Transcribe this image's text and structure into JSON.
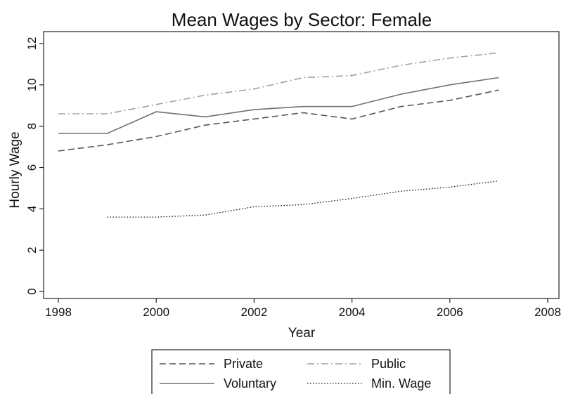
{
  "chart_data": {
    "type": "line",
    "title": "Mean Wages by Sector: Female",
    "xlabel": "Year",
    "ylabel": "Hourly Wage",
    "xlim": [
      1998,
      2008
    ],
    "ylim": [
      0,
      12
    ],
    "xticks": [
      1998,
      2000,
      2002,
      2004,
      2006,
      2008
    ],
    "yticks": [
      0,
      2,
      4,
      6,
      8,
      10,
      12
    ],
    "grid": false,
    "legend_position": "bottom",
    "series": [
      {
        "name": "Private",
        "style": "dashed",
        "color": "#555555",
        "x": [
          1998,
          1999,
          2000,
          2001,
          2002,
          2003,
          2004,
          2005,
          2006,
          2007
        ],
        "y": [
          6.8,
          7.1,
          7.5,
          8.05,
          8.35,
          8.65,
          8.35,
          8.95,
          9.25,
          9.75
        ]
      },
      {
        "name": "Public",
        "style": "dashdot",
        "color": "#a0a0a0",
        "x": [
          1998,
          1999,
          2000,
          2001,
          2002,
          2003,
          2004,
          2005,
          2006,
          2007
        ],
        "y": [
          8.6,
          8.6,
          9.05,
          9.5,
          9.8,
          10.35,
          10.45,
          10.95,
          11.3,
          11.55
        ]
      },
      {
        "name": "Voluntary",
        "style": "solid",
        "color": "#707070",
        "x": [
          1998,
          1999,
          2000,
          2001,
          2002,
          2003,
          2004,
          2005,
          2006,
          2007
        ],
        "y": [
          7.65,
          7.65,
          8.7,
          8.45,
          8.8,
          8.95,
          8.95,
          9.55,
          10.0,
          10.35
        ]
      },
      {
        "name": "Min. Wage",
        "style": "dotted",
        "color": "#111111",
        "x": [
          1999,
          2000,
          2001,
          2002,
          2003,
          2004,
          2005,
          2006,
          2007
        ],
        "y": [
          3.6,
          3.6,
          3.7,
          4.1,
          4.2,
          4.5,
          4.85,
          5.05,
          5.35
        ]
      }
    ]
  }
}
